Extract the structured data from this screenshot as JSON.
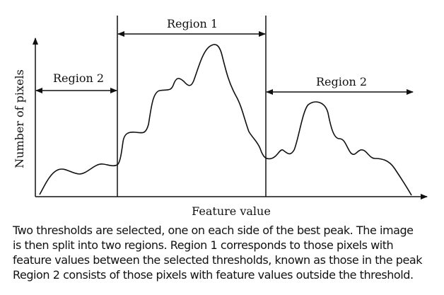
{
  "diagram": {
    "y_axis_label": "Number of pixels",
    "x_axis_label": "Feature value",
    "regions": [
      {
        "label": "Region 2"
      },
      {
        "label": "Region 1"
      },
      {
        "label": "Region 2"
      }
    ],
    "line_color": "#111111"
  },
  "caption": {
    "lines": [
      "Two thresholds are selected, one on each side of the best peak. The image",
      "is then split into two regions. Region 1 corresponds to those pixels with",
      "feature values between the selected thresholds, known as those in the peak",
      "Region 2 consists of those pixels with feature values outside the threshold."
    ]
  }
}
